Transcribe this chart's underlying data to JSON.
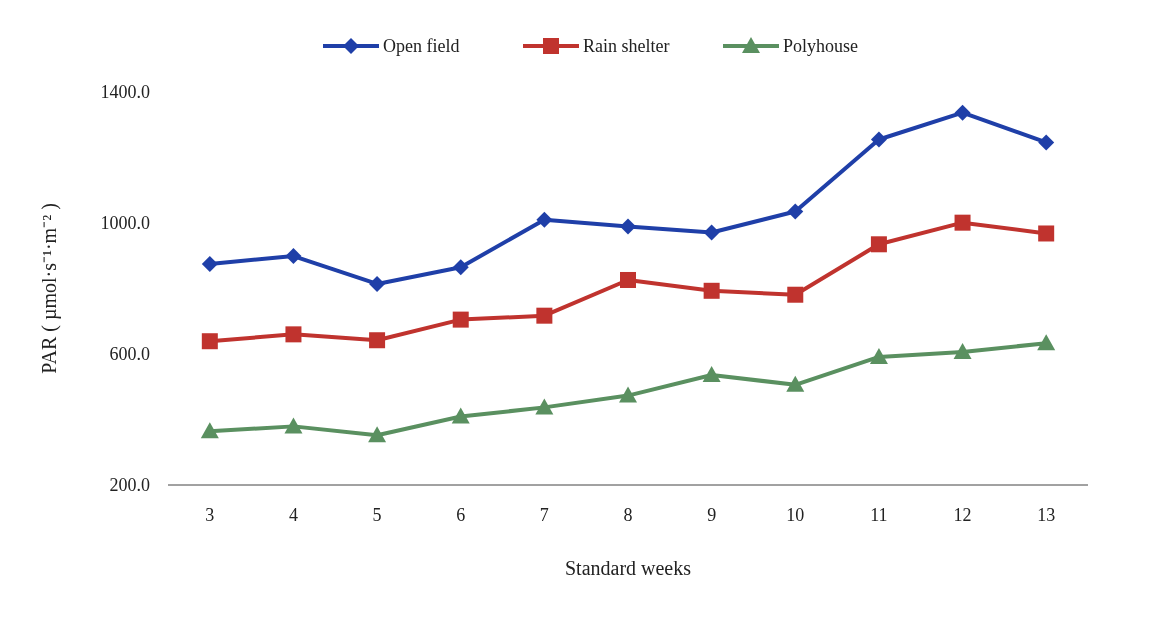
{
  "chart_data": {
    "type": "line",
    "xlabel": "Standard weeks",
    "ylabel": "PAR ( µmol·s⁻¹·m⁻² )",
    "categories": [
      "3",
      "4",
      "5",
      "6",
      "7",
      "8",
      "9",
      "10",
      "11",
      "12",
      "13"
    ],
    "ylim": [
      200,
      1400
    ],
    "yticks": [
      {
        "value": 200,
        "label": "200.0"
      },
      {
        "value": 600,
        "label": "600.0"
      },
      {
        "value": 1000,
        "label": "1000.0"
      },
      {
        "value": 1400,
        "label": "1400.0"
      }
    ],
    "grid": false,
    "legend": "top",
    "line_style": "solid",
    "series": [
      {
        "name": "Open field",
        "color": "#1f3fa8",
        "marker": "diamond",
        "values": [
          875,
          899,
          814,
          865,
          1010,
          989,
          971,
          1035,
          1255,
          1337,
          1246
        ]
      },
      {
        "name": "Rain shelter",
        "color": "#c0332e",
        "marker": "square",
        "values": [
          639,
          660,
          642,
          705,
          717,
          826,
          793,
          781,
          935,
          1001,
          968
        ]
      },
      {
        "name": "Polyhouse",
        "color": "#5a9060",
        "marker": "triangle",
        "values": [
          364,
          379,
          352,
          409,
          437,
          473,
          536,
          506,
          591,
          606,
          633
        ]
      }
    ]
  }
}
